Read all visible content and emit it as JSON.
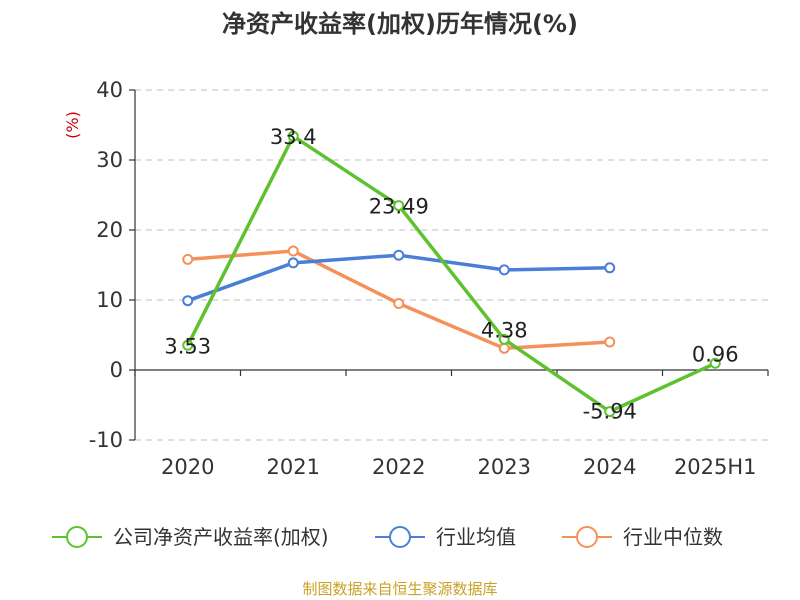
{
  "title": "净资产收益率(加权)历年情况(%)",
  "unit_label": "(%)",
  "source_note": "制图数据来自恒生聚源数据库",
  "legend": [
    {
      "label": "公司净资产收益率(加权)",
      "color": "#5ec22e"
    },
    {
      "label": "行业均值",
      "color": "#4a7fd8"
    },
    {
      "label": "行业中位数",
      "color": "#f4915a"
    }
  ],
  "chart_data": {
    "type": "line",
    "categories": [
      "2020",
      "2021",
      "2022",
      "2023",
      "2024",
      "2025H1"
    ],
    "ylim": [
      -10,
      40
    ],
    "yticks": [
      -10,
      0,
      10,
      20,
      30,
      40
    ],
    "grid": true,
    "legend_position": "bottom",
    "series": [
      {
        "name": "公司净资产收益率(加权)",
        "color": "#5ec22e",
        "values": [
          3.53,
          33.4,
          23.49,
          4.38,
          -5.94,
          0.96
        ],
        "labels": [
          "3.53",
          "33.4",
          "23.49",
          "4.38",
          "-5.94",
          "0.96"
        ]
      },
      {
        "name": "行业均值",
        "color": "#4a7fd8",
        "values": [
          9.9,
          15.3,
          16.4,
          14.3,
          14.6,
          null
        ]
      },
      {
        "name": "行业中位数",
        "color": "#f4915a",
        "values": [
          15.8,
          17.0,
          9.5,
          3.1,
          4.0,
          null
        ]
      }
    ]
  }
}
